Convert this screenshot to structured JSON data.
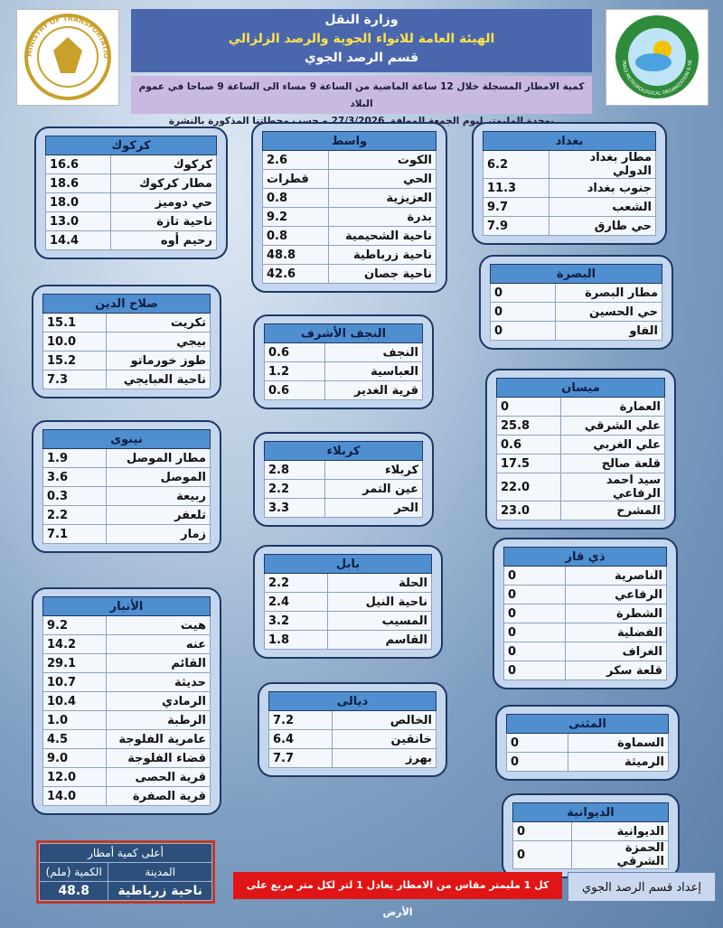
{
  "header": {
    "lines": [
      "وزارة النقل",
      "الهيئة العامة للانواء الجوية والرصد الزلزالي",
      "قسم الرصد الجوي"
    ],
    "left_logo": "MINISTRY OF TRANSPORTATION",
    "right_logo": "IRAQI METEOROLOGICAL ORGANIZATION & SEISMOLOGY"
  },
  "subtitle": [
    "كمية الامطار المسجلة خلال 12 ساعة الماضية من الساعة 9 مساء الى الساعة 9 صباحا في عموم البلاد",
    "بوحدة المليمتر ليوم الجمعة الموافق 27/3/2026 و حسب محطاتنا المذكورة بالنشرة"
  ],
  "regions": [
    {
      "title": "كركوك",
      "rows": [
        [
          "كركوك",
          "16.6"
        ],
        [
          "مطار كركوك",
          "18.6"
        ],
        [
          "حي دوميز",
          "18.0"
        ],
        [
          "ناحية تازة",
          "13.0"
        ],
        [
          "رحيم أوه",
          "14.4"
        ]
      ]
    },
    {
      "title": "واسط",
      "rows": [
        [
          "الكوت",
          "2.6"
        ],
        [
          "الحي",
          "قطرات"
        ],
        [
          "العزيزية",
          "0.8"
        ],
        [
          "بدرة",
          "9.2"
        ],
        [
          "ناحية الشحيمية",
          "0.8"
        ],
        [
          "ناحية زرباطية",
          "48.8"
        ],
        [
          "ناحية جصان",
          "42.6"
        ]
      ]
    },
    {
      "title": "بغداد",
      "rows": [
        [
          "مطار بغداد الدولي",
          "6.2"
        ],
        [
          "جنوب بغداد",
          "11.3"
        ],
        [
          "الشعب",
          "9.7"
        ],
        [
          "حي طارق",
          "7.9"
        ]
      ]
    },
    {
      "title": "صلاح الدين",
      "rows": [
        [
          "تكريت",
          "15.1"
        ],
        [
          "بيجي",
          "10.0"
        ],
        [
          "طوز خورماتو",
          "15.2"
        ],
        [
          "ناحية العبايجي",
          "7.3"
        ]
      ]
    },
    {
      "title": "النجف الأشرف",
      "rows": [
        [
          "النجف",
          "0.6"
        ],
        [
          "العباسية",
          "1.2"
        ],
        [
          "قرية الغدير",
          "0.6"
        ]
      ]
    },
    {
      "title": "البصرة",
      "rows": [
        [
          "مطار البصرة",
          "0"
        ],
        [
          "حي الحسين",
          "0"
        ],
        [
          "الفاو",
          "0"
        ]
      ]
    },
    {
      "title": "ميسان",
      "rows": [
        [
          "العمارة",
          "0"
        ],
        [
          "علي الشرقي",
          "25.8"
        ],
        [
          "علي الغربي",
          "0.6"
        ],
        [
          "قلعة صالح",
          "17.5"
        ],
        [
          "سيد احمد الرفاعي",
          "22.0"
        ],
        [
          "المشرح",
          "23.0"
        ]
      ]
    },
    {
      "title": "نينوى",
      "rows": [
        [
          "مطار الموصل",
          "1.9"
        ],
        [
          "الموصل",
          "3.6"
        ],
        [
          "ربيعة",
          "0.3"
        ],
        [
          "تلعفر",
          "2.2"
        ],
        [
          "زمار",
          "7.1"
        ]
      ]
    },
    {
      "title": "كربلاء",
      "rows": [
        [
          "كربلاء",
          "2.8"
        ],
        [
          "عين التمر",
          "2.2"
        ],
        [
          "الحر",
          "3.3"
        ]
      ]
    },
    {
      "title": "بابل",
      "rows": [
        [
          "الحلة",
          "2.2"
        ],
        [
          "ناحية النيل",
          "2.4"
        ],
        [
          "المسيب",
          "3.2"
        ],
        [
          "القاسم",
          "1.8"
        ]
      ]
    },
    {
      "title": "ذي قار",
      "rows": [
        [
          "الناصرية",
          "0"
        ],
        [
          "الرفاعي",
          "0"
        ],
        [
          "الشطرة",
          "0"
        ],
        [
          "الفضلية",
          "0"
        ],
        [
          "الغراف",
          "0"
        ],
        [
          "قلعة سكر",
          "0"
        ]
      ]
    },
    {
      "title": "الأنبار",
      "rows": [
        [
          "هيت",
          "9.2"
        ],
        [
          "عنه",
          "14.2"
        ],
        [
          "القائم",
          "29.1"
        ],
        [
          "حديثة",
          "10.7"
        ],
        [
          "الرمادي",
          "10.4"
        ],
        [
          "الرطبة",
          "1.0"
        ],
        [
          "عامرية الفلوجة",
          "4.5"
        ],
        [
          "قضاء الفلوجة",
          "9.0"
        ],
        [
          "قرية الحصى",
          "12.0"
        ],
        [
          "قرية الصفرة",
          "14.0"
        ]
      ]
    },
    {
      "title": "ديالى",
      "rows": [
        [
          "الخالص",
          "7.2"
        ],
        [
          "خانقين",
          "6.4"
        ],
        [
          "بهرز",
          "7.7"
        ]
      ]
    },
    {
      "title": "المثنى",
      "rows": [
        [
          "السماوة",
          "0"
        ],
        [
          "الرميثة",
          "0"
        ]
      ]
    },
    {
      "title": "الديوانية",
      "rows": [
        [
          "الديوانية",
          "0"
        ],
        [
          "الحمزة الشرقي",
          "0"
        ]
      ]
    }
  ],
  "highest": {
    "title": "أعلى كمية أمطار",
    "columns": [
      "المدينة",
      "الكمية (ملم)"
    ],
    "row": [
      "ناحية زرباطية",
      "48.8"
    ]
  },
  "note": "كل 1 مليمتر مقاس من الامطار يعادل 1 لتر لكل متر مربع على الأرض",
  "credit": "إعداد قسم الرصد الجوي"
}
